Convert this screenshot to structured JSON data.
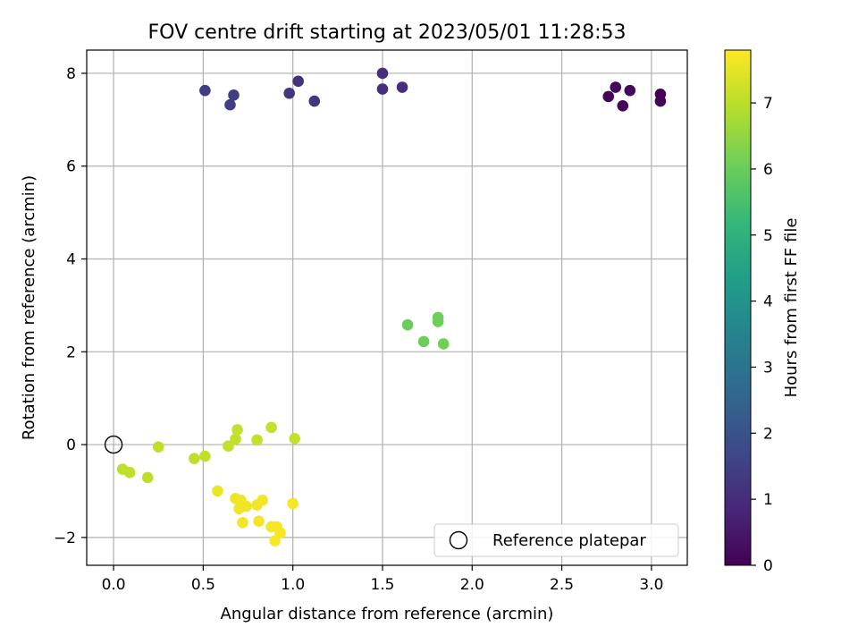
{
  "chart_data": {
    "type": "scatter",
    "title": "FOV centre drift starting at 2023/05/01 11:28:53",
    "xlabel": "Angular distance from reference (arcmin)",
    "ylabel": "Rotation from reference (arcmin)",
    "xlim": [
      -0.15,
      3.2
    ],
    "ylim": [
      -2.6,
      8.5
    ],
    "xticks": [
      0.0,
      0.5,
      1.0,
      1.5,
      2.0,
      2.5,
      3.0
    ],
    "xtick_labels": [
      "0.0",
      "0.5",
      "1.0",
      "1.5",
      "2.0",
      "2.5",
      "3.0"
    ],
    "yticks": [
      -2,
      0,
      2,
      4,
      6,
      8
    ],
    "ytick_labels": [
      "−2",
      "0",
      "2",
      "4",
      "6",
      "8"
    ],
    "grid": true,
    "legend": {
      "position": "bottom-right",
      "entries": [
        "Reference platepar"
      ]
    },
    "reference_point": {
      "x": 0.0,
      "y": 0.0,
      "label": "Reference platepar"
    },
    "colorbar": {
      "label": "Hours from first FF file",
      "range": [
        0,
        7.8
      ],
      "ticks": [
        0,
        1,
        2,
        3,
        4,
        5,
        6,
        7
      ],
      "tick_labels": [
        "0",
        "1",
        "2",
        "3",
        "4",
        "5",
        "6",
        "7"
      ],
      "colormap": "viridis",
      "colormap_stops": [
        "#440154",
        "#482878",
        "#3e4989",
        "#31688e",
        "#26828e",
        "#1f9e89",
        "#35b779",
        "#6ece58",
        "#b5de2b",
        "#fde725"
      ]
    },
    "points": [
      {
        "x": 3.05,
        "y": 7.55,
        "c": 0.05
      },
      {
        "x": 3.05,
        "y": 7.4,
        "c": 0.08
      },
      {
        "x": 2.84,
        "y": 7.3,
        "c": 0.1
      },
      {
        "x": 2.76,
        "y": 7.5,
        "c": 0.12
      },
      {
        "x": 2.8,
        "y": 7.7,
        "c": 0.15
      },
      {
        "x": 2.88,
        "y": 7.63,
        "c": 0.18
      },
      {
        "x": 1.5,
        "y": 8.0,
        "c": 1.0
      },
      {
        "x": 1.5,
        "y": 7.66,
        "c": 1.03
      },
      {
        "x": 1.61,
        "y": 7.7,
        "c": 1.05
      },
      {
        "x": 1.03,
        "y": 7.83,
        "c": 1.15
      },
      {
        "x": 0.98,
        "y": 7.57,
        "c": 1.2
      },
      {
        "x": 1.12,
        "y": 7.4,
        "c": 1.22
      },
      {
        "x": 0.51,
        "y": 7.63,
        "c": 1.4
      },
      {
        "x": 0.67,
        "y": 7.53,
        "c": 1.42
      },
      {
        "x": 0.65,
        "y": 7.32,
        "c": 1.45
      },
      {
        "x": 1.64,
        "y": 2.58,
        "c": 6.0
      },
      {
        "x": 1.73,
        "y": 2.22,
        "c": 6.02
      },
      {
        "x": 1.81,
        "y": 2.74,
        "c": 6.05
      },
      {
        "x": 1.81,
        "y": 2.65,
        "c": 6.07
      },
      {
        "x": 1.84,
        "y": 2.17,
        "c": 6.1
      },
      {
        "x": 0.05,
        "y": -0.53,
        "c": 7.0
      },
      {
        "x": 0.09,
        "y": -0.6,
        "c": 7.02
      },
      {
        "x": 0.19,
        "y": -0.71,
        "c": 7.04
      },
      {
        "x": 0.25,
        "y": -0.05,
        "c": 7.05
      },
      {
        "x": 0.45,
        "y": -0.3,
        "c": 7.06
      },
      {
        "x": 0.51,
        "y": -0.25,
        "c": 7.07
      },
      {
        "x": 0.64,
        "y": -0.03,
        "c": 7.08
      },
      {
        "x": 0.68,
        "y": 0.12,
        "c": 7.09
      },
      {
        "x": 0.69,
        "y": 0.32,
        "c": 7.1
      },
      {
        "x": 0.8,
        "y": 0.1,
        "c": 7.11
      },
      {
        "x": 0.88,
        "y": 0.37,
        "c": 7.12
      },
      {
        "x": 1.01,
        "y": 0.13,
        "c": 7.13
      },
      {
        "x": 0.58,
        "y": -1.0,
        "c": 7.6
      },
      {
        "x": 0.68,
        "y": -1.16,
        "c": 7.62
      },
      {
        "x": 0.71,
        "y": -1.2,
        "c": 7.63
      },
      {
        "x": 0.7,
        "y": -1.38,
        "c": 7.64
      },
      {
        "x": 0.74,
        "y": -1.33,
        "c": 7.65
      },
      {
        "x": 0.8,
        "y": -1.3,
        "c": 7.66
      },
      {
        "x": 0.83,
        "y": -1.2,
        "c": 7.67
      },
      {
        "x": 0.72,
        "y": -1.68,
        "c": 7.68
      },
      {
        "x": 0.81,
        "y": -1.65,
        "c": 7.69
      },
      {
        "x": 1.0,
        "y": -1.27,
        "c": 7.7
      },
      {
        "x": 0.88,
        "y": -1.77,
        "c": 7.72
      },
      {
        "x": 0.91,
        "y": -1.77,
        "c": 7.73
      },
      {
        "x": 0.93,
        "y": -1.9,
        "c": 7.74
      },
      {
        "x": 0.9,
        "y": -2.07,
        "c": 7.75
      }
    ]
  }
}
